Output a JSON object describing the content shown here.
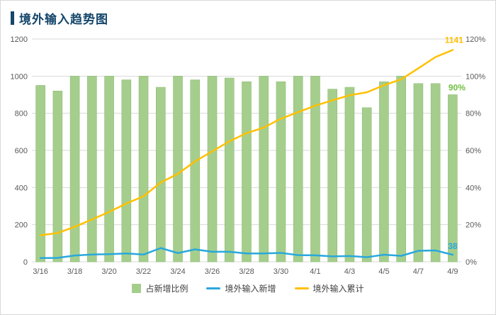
{
  "title": "境外输入趋势图",
  "colors": {
    "title": "#15466B",
    "bar": "#A5CE8D",
    "bar_edge": "#8FBE72",
    "bar_label": "#70C041",
    "line_new": "#29A8DC",
    "line_cum": "#FFC000",
    "grid": "#D9D9D9",
    "axis_text": "#595959"
  },
  "chart_data": {
    "type": "combo",
    "categories": [
      "3/16",
      "3/17",
      "3/18",
      "3/19",
      "3/20",
      "3/21",
      "3/22",
      "3/23",
      "3/24",
      "3/25",
      "3/26",
      "3/27",
      "3/28",
      "3/29",
      "3/30",
      "3/31",
      "4/1",
      "4/2",
      "4/3",
      "4/4",
      "4/5",
      "4/6",
      "4/7",
      "4/8",
      "4/9"
    ],
    "x_tick_labels": [
      "3/16",
      "3/18",
      "3/20",
      "3/22",
      "3/24",
      "3/26",
      "3/28",
      "3/30",
      "4/1",
      "4/3",
      "4/5",
      "4/7",
      "4/9"
    ],
    "left_axis": {
      "min": 0,
      "max": 1200,
      "step": 200,
      "ticks": [
        0,
        200,
        400,
        600,
        800,
        1000,
        1200
      ]
    },
    "right_axis": {
      "min": 0,
      "max": 120,
      "step": 20,
      "ticks": [
        "0%",
        "20%",
        "40%",
        "60%",
        "80%",
        "100%",
        "120%"
      ]
    },
    "series": [
      {
        "name": "占新增比例",
        "type": "bar",
        "axis": "right",
        "values": [
          95,
          92,
          100,
          100,
          100,
          98,
          100,
          94,
          100,
          98,
          100,
          99,
          97,
          100,
          97,
          100,
          100,
          93,
          94,
          83,
          97,
          100,
          96,
          96,
          90
        ]
      },
      {
        "name": "境外输入新增",
        "type": "line",
        "axis": "left",
        "values": [
          20,
          21,
          34,
          39,
          41,
          45,
          39,
          74,
          47,
          67,
          54,
          54,
          45,
          45,
          48,
          36,
          35,
          29,
          31,
          25,
          38,
          32,
          59,
          61,
          38
        ]
      },
      {
        "name": "境外输入累计",
        "type": "line",
        "axis": "left",
        "values": [
          143,
          155,
          189,
          228,
          269,
          314,
          353,
          427,
          474,
          541,
          595,
          649,
          693,
          723,
          771,
          806,
          841,
          870,
          897,
          913,
          951,
          983,
          1042,
          1103,
          1141
        ]
      }
    ],
    "annotations": [
      {
        "series": "境外输入累计",
        "text": "1141"
      },
      {
        "series": "境外输入新增",
        "text": "38"
      },
      {
        "series": "占新增比例",
        "text": "90%"
      }
    ],
    "legend_position": "bottom",
    "grid": true
  },
  "legend": {
    "items": [
      {
        "label": "占新增比例",
        "marker": "bar"
      },
      {
        "label": "境外输入新增",
        "marker": "line-blue"
      },
      {
        "label": "境外输入累计",
        "marker": "line-gold"
      }
    ]
  }
}
